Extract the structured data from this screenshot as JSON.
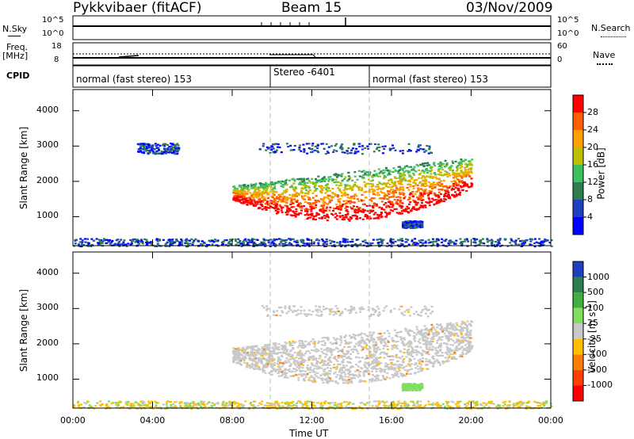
{
  "header": {
    "station": "Pykkvibaer (fitACF)",
    "beam": "Beam 15",
    "date": "03/Nov/2009"
  },
  "strips": {
    "nsky_label": "N.Sky",
    "nsky_ticks": [
      "10^5",
      "10^0"
    ],
    "nsearch_label": "N.Search",
    "nsearch_ticks": [
      "10^5",
      "10^0"
    ],
    "freq_label": "Freq.",
    "freq_unit": "[MHz]",
    "freq_ticks": [
      "18",
      "8"
    ],
    "nave_label": "Nave",
    "nave_ticks": [
      "60",
      "0"
    ],
    "cpid_label": "CPID",
    "cpid_segments": [
      "normal (fast stereo) 153",
      "Stereo -6401",
      "normal (fast stereo) 153"
    ]
  },
  "chart_data": [
    {
      "type": "heatmap",
      "panel": "power",
      "ylabel": "Slant Range [km]",
      "xlabel": "",
      "x_ticks": [
        "00:00",
        "04:00",
        "08:00",
        "12:00",
        "16:00",
        "20:00",
        "00:00"
      ],
      "x_range_hours": [
        0,
        24
      ],
      "y_ticks": [
        1000,
        2000,
        3000,
        4000
      ],
      "y_range": [
        180,
        4600
      ],
      "colorbar": {
        "label": "Power [dB]",
        "ticks": [
          "4",
          "8",
          "12",
          "16",
          "20",
          "24",
          "28"
        ],
        "range": [
          0,
          30
        ],
        "colors": [
          "#0000ff",
          "#1f3fbf",
          "#2e7d4f",
          "#3fbf5f",
          "#bfbf00",
          "#ff9f00",
          "#ff5f00",
          "#ff0000"
        ]
      },
      "regions": [
        {
          "desc": "main arc",
          "x": [
            8.0,
            20.0
          ],
          "y": [
            900,
            2700
          ],
          "level": 24
        },
        {
          "desc": "upper echoes",
          "x": [
            9.3,
            18.0
          ],
          "y": [
            2800,
            3100
          ],
          "level": 10
        },
        {
          "desc": "early echoes",
          "x": [
            3.2,
            5.3
          ],
          "y": [
            2800,
            3100
          ],
          "level": 6
        },
        {
          "desc": "near range",
          "x": [
            0.0,
            24.0
          ],
          "y": [
            180,
            400
          ],
          "level": 5
        },
        {
          "desc": "evening patch",
          "x": [
            16.5,
            17.5
          ],
          "y": [
            700,
            900
          ],
          "level": 6
        }
      ]
    },
    {
      "type": "heatmap",
      "panel": "velocity",
      "ylabel": "Slant Range [km]",
      "xlabel": "Time UT",
      "x_ticks": [
        "00:00",
        "04:00",
        "08:00",
        "12:00",
        "16:00",
        "20:00",
        "00:00"
      ],
      "x_range_hours": [
        0,
        24
      ],
      "y_ticks": [
        1000,
        2000,
        3000,
        4000
      ],
      "y_range": [
        180,
        4600
      ],
      "colorbar": {
        "label": "Velocity [m s",
        "label_exponent": "-1",
        "label_close": "]",
        "ticks": [
          "1000",
          "500",
          "100",
          "25",
          "-25",
          "-100",
          "-500",
          "-1000"
        ],
        "colors": [
          "#1f3fbf",
          "#2e7d4f",
          "#3faf3f",
          "#7fdf5f",
          "#c8c8c8",
          "#ffbf00",
          "#ff7f00",
          "#ff3f00",
          "#ff0000"
        ]
      },
      "regions": [
        {
          "desc": "main arc",
          "x": [
            8.0,
            20.0
          ],
          "y": [
            900,
            2700
          ],
          "velocity": 0
        },
        {
          "desc": "upper echoes",
          "x": [
            9.3,
            18.0
          ],
          "y": [
            2800,
            3100
          ],
          "velocity": 0
        },
        {
          "desc": "evening patch",
          "x": [
            16.5,
            17.5
          ],
          "y": [
            700,
            900
          ],
          "velocity": 200
        },
        {
          "desc": "near range",
          "x": [
            0.0,
            24.0
          ],
          "y": [
            180,
            400
          ],
          "velocity": -50
        }
      ]
    }
  ]
}
